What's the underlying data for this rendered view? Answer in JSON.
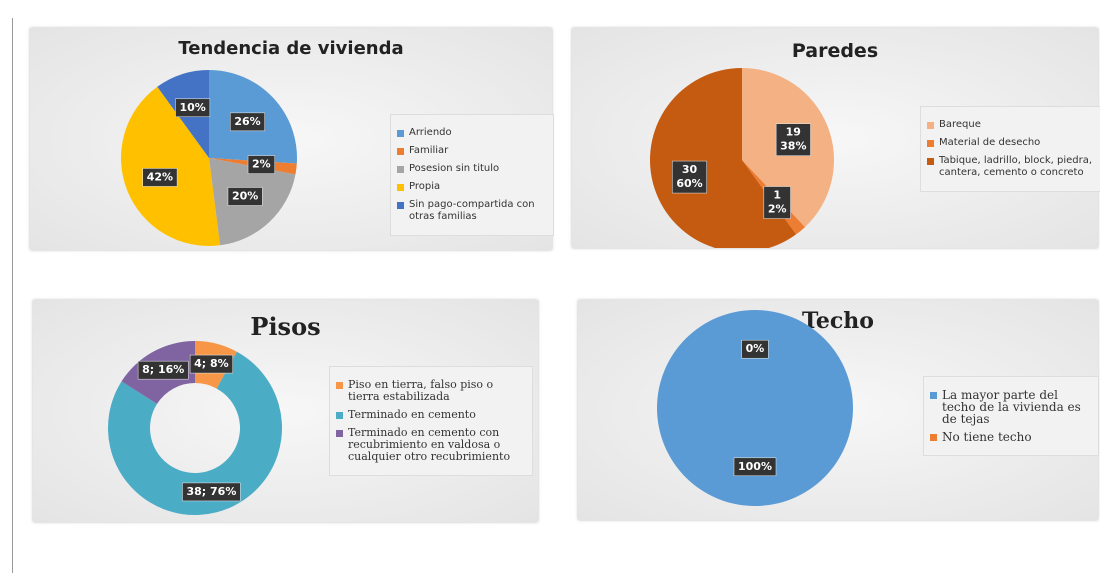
{
  "chart_data": [
    {
      "type": "pie",
      "title": "Tendencia de vivienda",
      "categories": [
        "Arriendo",
        "Familiar",
        "Posesion sin titulo",
        "Propia",
        "Sin pago-compartida con otras familias"
      ],
      "values": [
        26,
        2,
        20,
        42,
        10
      ],
      "value_labels": [
        "26%",
        "2%",
        "20%",
        "42%",
        "10%"
      ],
      "colors": [
        "#5b9bd5",
        "#ed7d31",
        "#a5a5a5",
        "#ffc000",
        "#4472c4"
      ],
      "legend": "right"
    },
    {
      "type": "pie",
      "title": "Paredes",
      "categories": [
        "Bareque",
        "Material de desecho",
        "Tabique, ladrillo, block, piedra, cantera, cemento o concreto"
      ],
      "values": [
        19,
        1,
        30
      ],
      "percent_labels": [
        "38%",
        "2%",
        "60%"
      ],
      "colors": [
        "#f4b183",
        "#ed7d31",
        "#c55a11"
      ],
      "legend": "right"
    },
    {
      "type": "doughnut",
      "title": "Pisos",
      "categories": [
        "Piso en tierra, falso piso o tierra estabilizada",
        "Terminado en cemento",
        "Terminado en cemento con recubrimiento en valdosa o cualquier otro recubrimiento"
      ],
      "values": [
        4,
        38,
        8
      ],
      "value_labels": [
        "4; 8%",
        "38; 76%",
        "8; 16%"
      ],
      "colors": [
        "#f79646",
        "#4bacc6",
        "#8064a2"
      ],
      "legend": "right"
    },
    {
      "type": "pie",
      "title": "Techo",
      "categories": [
        "La mayor parte del techo de la vivienda es de tejas",
        "No tiene techo"
      ],
      "values": [
        100,
        0
      ],
      "value_labels": [
        "100%",
        "0%"
      ],
      "colors": [
        "#5b9bd5",
        "#ed7d31"
      ],
      "legend": "right"
    }
  ]
}
